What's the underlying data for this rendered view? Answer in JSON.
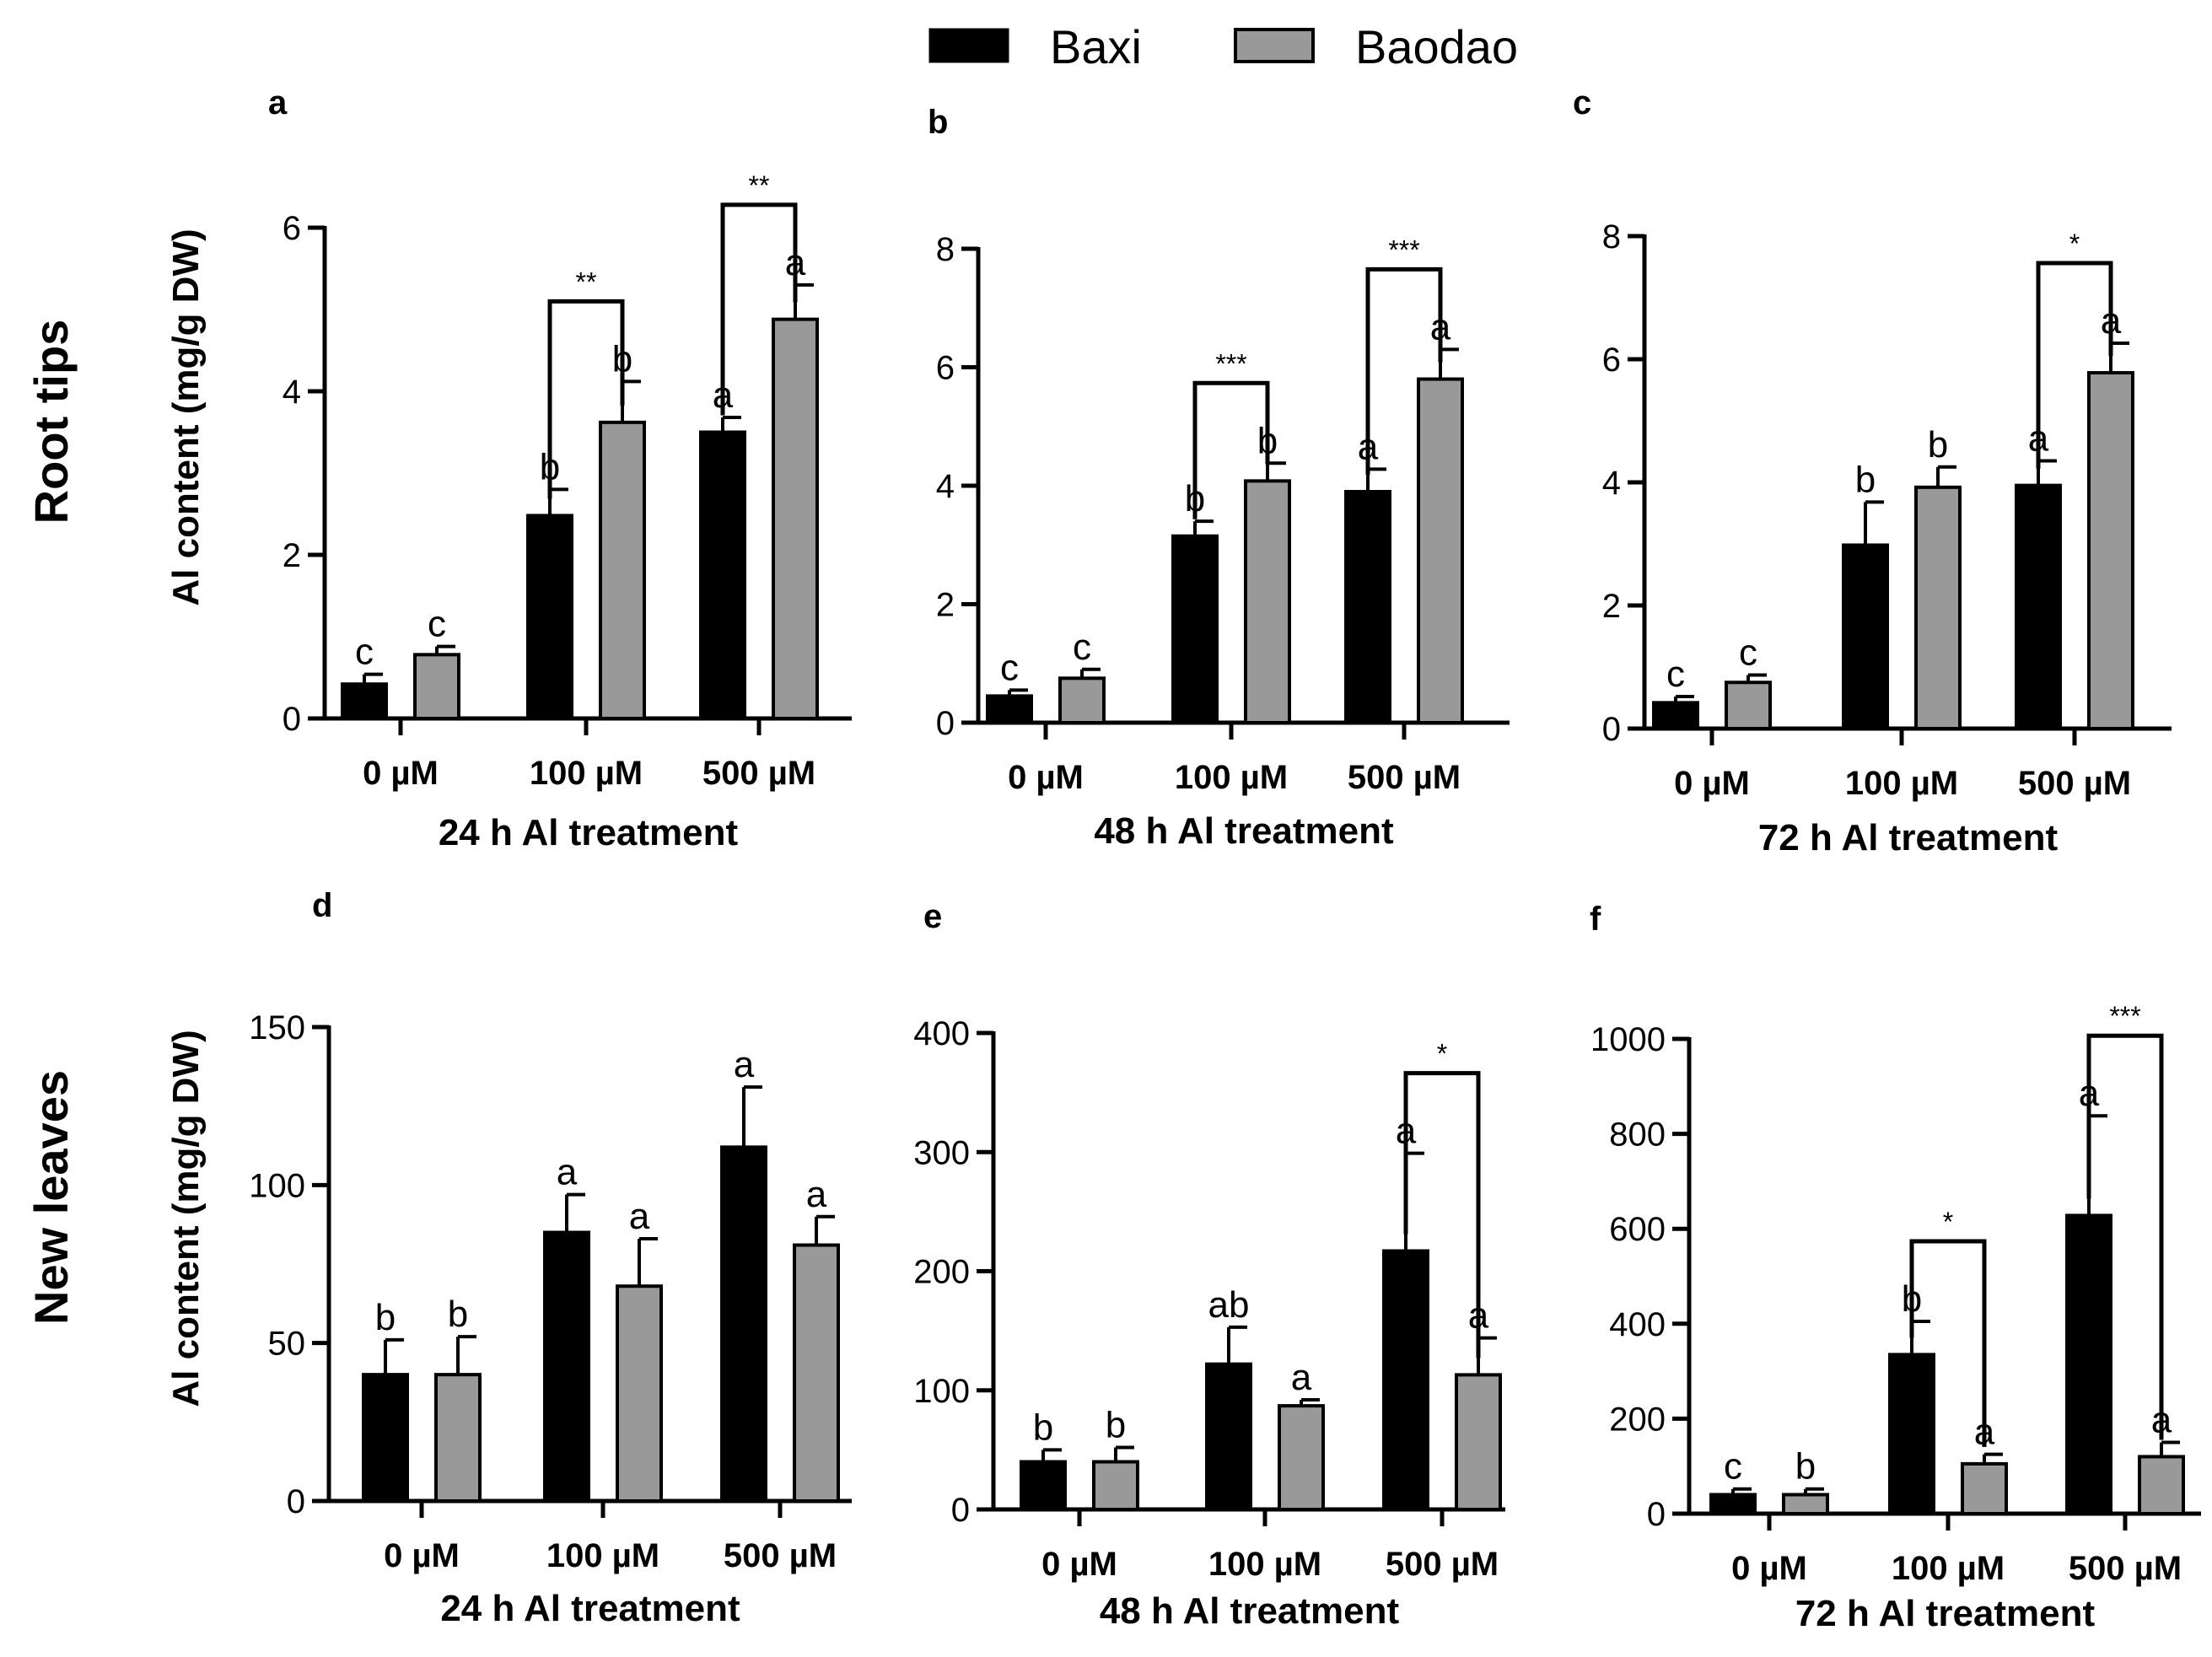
{
  "legend": {
    "items": [
      {
        "name": "Baxi",
        "color": "#000000"
      },
      {
        "name": "Baodao",
        "color": "#999999"
      }
    ]
  },
  "rows": [
    {
      "label": "Root tips",
      "ylabel": "Al content (mg/g DW)"
    },
    {
      "label": "New leaves",
      "ylabel": "Al content (mg/g DW)"
    }
  ],
  "chart_data": [
    {
      "type": "bar",
      "panel": "a",
      "row": 0,
      "title": "",
      "xlabel": "24 h Al treatment",
      "ylabel": "Al content (mg/g DW)",
      "categories": [
        "0 µM",
        "100 µM",
        "500 µM"
      ],
      "ylim": [
        0,
        6
      ],
      "yticks": [
        0,
        2,
        4,
        6
      ],
      "series": [
        {
          "name": "Baxi",
          "values": [
            0.42,
            2.48,
            3.5
          ],
          "errors": [
            0.12,
            0.32,
            0.18
          ],
          "letters": [
            "c",
            "b",
            "a"
          ]
        },
        {
          "name": "Baodao",
          "values": [
            0.78,
            3.62,
            4.88
          ],
          "errors": [
            0.1,
            0.5,
            0.42
          ],
          "letters": [
            "c",
            "b",
            "a"
          ]
        }
      ],
      "significance": [
        {
          "category": 1,
          "label": "**"
        },
        {
          "category": 2,
          "label": "**"
        }
      ]
    },
    {
      "type": "bar",
      "panel": "b",
      "row": 0,
      "title": "",
      "xlabel": "48 h Al treatment",
      "ylabel": "Al content (mg/g DW)",
      "categories": [
        "0 µM",
        "100 µM",
        "500 µM"
      ],
      "ylim": [
        0,
        8
      ],
      "yticks": [
        0,
        2,
        4,
        6,
        8
      ],
      "series": [
        {
          "name": "Baxi",
          "values": [
            0.45,
            3.15,
            3.9
          ],
          "errors": [
            0.1,
            0.25,
            0.38
          ],
          "letters": [
            "c",
            "b",
            "a"
          ]
        },
        {
          "name": "Baodao",
          "values": [
            0.75,
            4.08,
            5.8
          ],
          "errors": [
            0.15,
            0.3,
            0.5
          ],
          "letters": [
            "c",
            "b",
            "a"
          ]
        }
      ],
      "significance": [
        {
          "category": 1,
          "label": "***"
        },
        {
          "category": 2,
          "label": "***"
        }
      ]
    },
    {
      "type": "bar",
      "panel": "c",
      "row": 0,
      "title": "",
      "xlabel": "72 h Al treatment",
      "ylabel": "Al content (mg/g DW)",
      "categories": [
        "0 µM",
        "100 µM",
        "500 µM"
      ],
      "ylim": [
        0,
        8
      ],
      "yticks": [
        0,
        2,
        4,
        6,
        8
      ],
      "series": [
        {
          "name": "Baxi",
          "values": [
            0.42,
            2.98,
            3.95
          ],
          "errors": [
            0.1,
            0.7,
            0.4
          ],
          "letters": [
            "c",
            "b",
            "a"
          ]
        },
        {
          "name": "Baodao",
          "values": [
            0.75,
            3.92,
            5.78
          ],
          "errors": [
            0.12,
            0.33,
            0.48
          ],
          "letters": [
            "c",
            "b",
            "a"
          ]
        }
      ],
      "significance": [
        {
          "category": 2,
          "label": "*"
        }
      ]
    },
    {
      "type": "bar",
      "panel": "d",
      "row": 1,
      "title": "",
      "xlabel": "24 h Al treatment",
      "ylabel": "Al content (mg/g DW)",
      "categories": [
        "0 µM",
        "100 µM",
        "500 µM"
      ],
      "ylim": [
        0,
        150
      ],
      "yticks": [
        0,
        50,
        100,
        150
      ],
      "series": [
        {
          "name": "Baxi",
          "values": [
            40,
            85,
            112
          ],
          "errors": [
            11,
            12,
            19
          ],
          "letters": [
            "b",
            "a",
            "a"
          ]
        },
        {
          "name": "Baodao",
          "values": [
            40,
            68,
            81
          ],
          "errors": [
            12,
            15,
            9
          ],
          "letters": [
            "b",
            "a",
            "a"
          ]
        }
      ],
      "significance": []
    },
    {
      "type": "bar",
      "panel": "e",
      "row": 1,
      "title": "",
      "xlabel": "48 h Al treatment",
      "ylabel": "Al content (mg/g DW)",
      "categories": [
        "0 µM",
        "100 µM",
        "500 µM"
      ],
      "ylim": [
        0,
        400
      ],
      "yticks": [
        0,
        100,
        200,
        300,
        400
      ],
      "series": [
        {
          "name": "Baxi",
          "values": [
            40,
            122,
            217
          ],
          "errors": [
            10,
            31,
            82
          ],
          "letters": [
            "b",
            "ab",
            "a"
          ]
        },
        {
          "name": "Baodao",
          "values": [
            40,
            87,
            113
          ],
          "errors": [
            12,
            5,
            31
          ],
          "letters": [
            "b",
            "a",
            "a"
          ]
        }
      ],
      "significance": [
        {
          "category": 2,
          "label": "*"
        }
      ]
    },
    {
      "type": "bar",
      "panel": "f",
      "row": 1,
      "title": "",
      "xlabel": "72 h Al treatment",
      "ylabel": "Al content (mg/g DW)",
      "categories": [
        "0 µM",
        "100 µM",
        "500 µM"
      ],
      "ylim": [
        0,
        1000
      ],
      "yticks": [
        0,
        200,
        400,
        600,
        800,
        1000
      ],
      "series": [
        {
          "name": "Baxi",
          "values": [
            40,
            335,
            628
          ],
          "errors": [
            12,
            70,
            210
          ],
          "letters": [
            "c",
            "b",
            "a"
          ]
        },
        {
          "name": "Baodao",
          "values": [
            40,
            105,
            120
          ],
          "errors": [
            12,
            20,
            30
          ],
          "letters": [
            "b",
            "a",
            "a"
          ]
        }
      ],
      "significance": [
        {
          "category": 1,
          "label": "*"
        },
        {
          "category": 2,
          "label": "***"
        }
      ]
    }
  ]
}
